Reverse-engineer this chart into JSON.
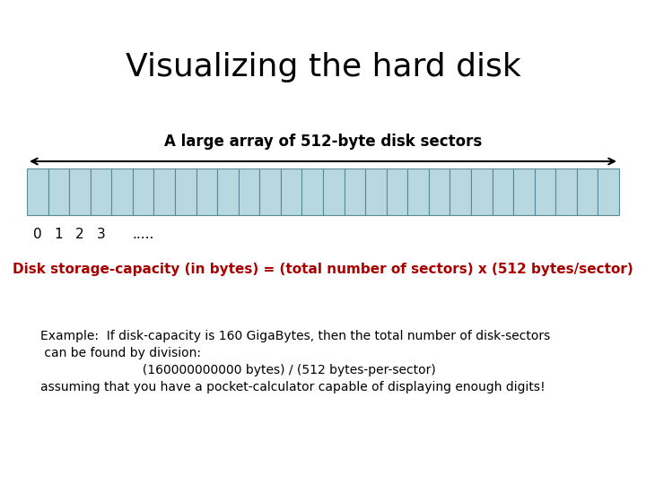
{
  "title": "Visualizing the hard disk",
  "subtitle": "A large array of 512-byte disk sectors",
  "sector_color": "#b8d8e0",
  "sector_edge_color": "#5a8a9a",
  "num_sectors": 28,
  "sector_labels": [
    "0",
    "1",
    "2",
    "3",
    "....."
  ],
  "capacity_line": "Disk storage-capacity (in bytes) = (total number of sectors) x (512 bytes/sector)",
  "capacity_color": "#aa0000",
  "example_line1": "Example:  If disk-capacity is 160 GigaBytes, then the total number of disk-sectors",
  "example_line2": " can be found by division:",
  "example_line3": "                          (160000000000 bytes) / (512 bytes-per-sector)",
  "example_line4": "assuming that you have a pocket-calculator capable of displaying enough digits!",
  "bg_color": "#ffffff",
  "title_fontsize": 26,
  "subtitle_fontsize": 12,
  "capacity_fontsize": 11,
  "example_fontsize": 10
}
